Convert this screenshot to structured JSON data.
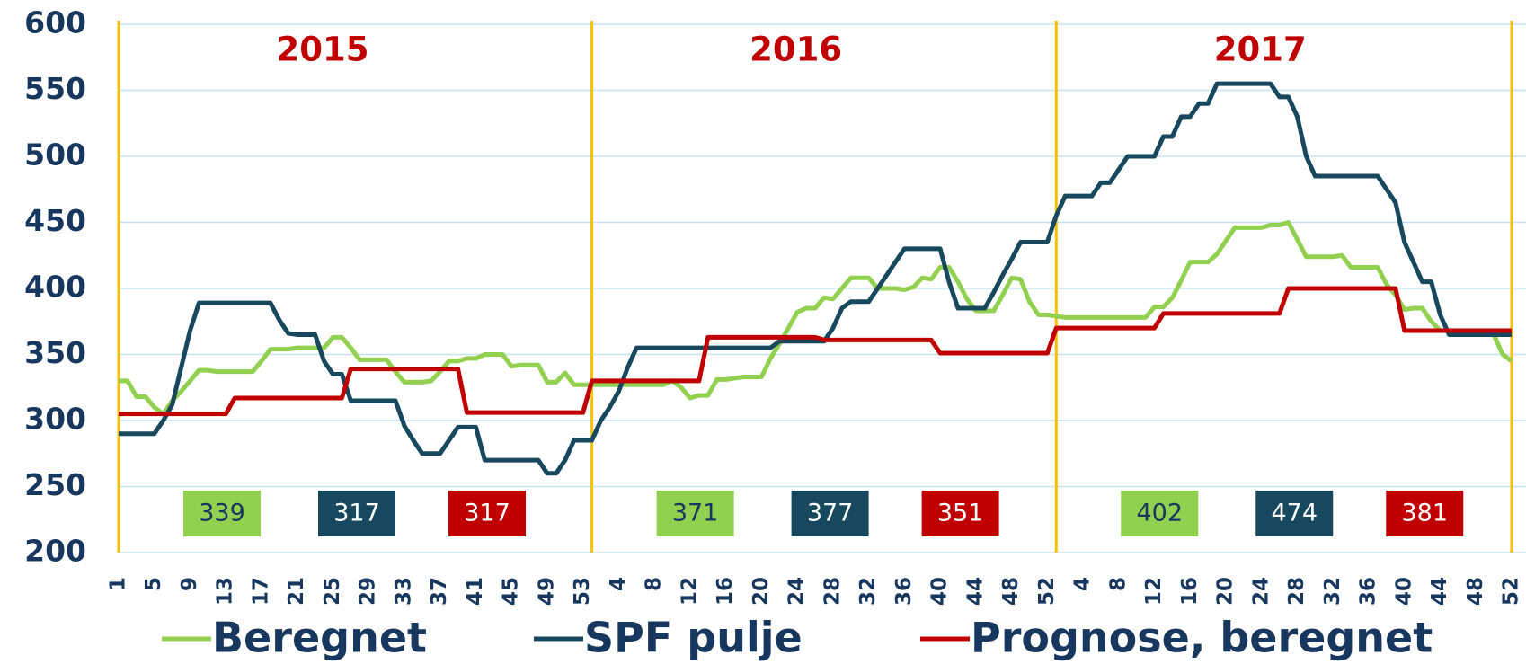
{
  "chart_data": {
    "type": "line",
    "years": [
      "2015",
      "2016",
      "2017"
    ],
    "categories": [
      1,
      null,
      null,
      null,
      5,
      null,
      null,
      null,
      9,
      null,
      null,
      null,
      13,
      null,
      null,
      null,
      17,
      null,
      null,
      null,
      21,
      null,
      null,
      null,
      25,
      null,
      null,
      null,
      29,
      null,
      null,
      null,
      33,
      null,
      null,
      null,
      37,
      null,
      null,
      null,
      41,
      null,
      null,
      null,
      45,
      null,
      null,
      null,
      49,
      null,
      null,
      null,
      53,
      null,
      null,
      null,
      4,
      null,
      null,
      null,
      8,
      null,
      null,
      null,
      12,
      null,
      null,
      null,
      16,
      null,
      null,
      null,
      20,
      null,
      null,
      null,
      24,
      null,
      null,
      null,
      28,
      null,
      null,
      null,
      32,
      null,
      null,
      null,
      36,
      null,
      null,
      null,
      40,
      null,
      null,
      null,
      44,
      null,
      null,
      null,
      48,
      null,
      null,
      null,
      52,
      null,
      null,
      null,
      4,
      null,
      null,
      null,
      8,
      null,
      null,
      null,
      12,
      null,
      null,
      null,
      16,
      null,
      null,
      null,
      20,
      null,
      null,
      null,
      24,
      null,
      null,
      null,
      28,
      null,
      null,
      null,
      32,
      null,
      null,
      null,
      36,
      null,
      null,
      null,
      40,
      null,
      null,
      null,
      44,
      null,
      null,
      null,
      48,
      null,
      null,
      null,
      52
    ],
    "ylim": [
      200,
      600
    ],
    "yticks": [
      200,
      250,
      300,
      350,
      400,
      450,
      500,
      550,
      600
    ],
    "grid": true,
    "series": [
      {
        "name": "Beregnet",
        "color": "#92d050",
        "averages": [
          339,
          371,
          402
        ],
        "values": [
          330,
          330,
          318,
          318,
          310,
          305,
          315,
          322,
          330,
          338,
          338,
          337,
          337,
          337,
          337,
          337,
          345,
          354,
          354,
          354,
          355,
          355,
          355,
          355,
          363,
          363,
          355,
          346,
          346,
          346,
          346,
          337,
          329,
          329,
          329,
          330,
          337,
          345,
          345,
          347,
          347,
          350,
          350,
          350,
          341,
          342,
          342,
          342,
          329,
          329,
          336,
          327,
          327,
          327,
          327,
          327,
          327,
          327,
          327,
          327,
          327,
          327,
          330,
          325,
          317,
          319,
          319,
          331,
          331,
          332,
          333,
          333,
          333,
          347,
          358,
          370,
          382,
          385,
          385,
          393,
          392,
          400,
          408,
          408,
          408,
          400,
          400,
          400,
          399,
          401,
          408,
          407,
          416,
          416,
          405,
          392,
          383,
          383,
          383,
          395,
          408,
          407,
          390,
          380,
          380,
          379,
          378,
          378,
          378,
          378,
          378,
          378,
          378,
          378,
          378,
          378,
          386,
          386,
          393,
          406,
          420,
          420,
          420,
          426,
          436,
          446,
          446,
          446,
          446,
          448,
          448,
          450,
          437,
          424,
          424,
          424,
          424,
          425,
          416,
          416,
          416,
          416,
          403,
          395,
          384,
          385,
          385,
          375,
          368,
          368,
          367,
          367,
          366,
          365,
          365,
          350,
          345
        ]
      },
      {
        "name": "SPF pulje",
        "color": "#17485e",
        "averages": [
          317,
          377,
          474
        ],
        "values": [
          290,
          290,
          290,
          290,
          290,
          300,
          312,
          340,
          368,
          389,
          389,
          389,
          389,
          389,
          389,
          389,
          389,
          389,
          376,
          366,
          365,
          365,
          365,
          345,
          335,
          335,
          315,
          315,
          315,
          315,
          315,
          315,
          296,
          285,
          275,
          275,
          275,
          285,
          295,
          295,
          295,
          270,
          270,
          270,
          270,
          270,
          270,
          270,
          260,
          260,
          270,
          285,
          285,
          285,
          300,
          310,
          322,
          340,
          355,
          355,
          355,
          355,
          355,
          355,
          355,
          355,
          355,
          355,
          355,
          355,
          355,
          355,
          355,
          355,
          360,
          360,
          360,
          360,
          360,
          360,
          370,
          385,
          390,
          390,
          390,
          400,
          410,
          420,
          430,
          430,
          430,
          430,
          430,
          405,
          385,
          385,
          385,
          385,
          397,
          410,
          422,
          435,
          435,
          435,
          435,
          455,
          470,
          470,
          470,
          470,
          480,
          480,
          490,
          500,
          500,
          500,
          500,
          515,
          515,
          530,
          530,
          540,
          540,
          555,
          555,
          555,
          555,
          555,
          555,
          555,
          545,
          545,
          530,
          500,
          485,
          485,
          485,
          485,
          485,
          485,
          485,
          485,
          475,
          465,
          435,
          420,
          405,
          405,
          380,
          365,
          365,
          365,
          365,
          365,
          365,
          365,
          365
        ]
      },
      {
        "name": "Prognose, beregnet",
        "color": "#c00000",
        "averages": [
          317,
          351,
          381
        ],
        "values": [
          305,
          305,
          305,
          305,
          305,
          305,
          305,
          305,
          305,
          305,
          305,
          305,
          305,
          317,
          317,
          317,
          317,
          317,
          317,
          317,
          317,
          317,
          317,
          317,
          317,
          317,
          339,
          339,
          339,
          339,
          339,
          339,
          339,
          339,
          339,
          339,
          339,
          339,
          339,
          306,
          306,
          306,
          306,
          306,
          306,
          306,
          306,
          306,
          306,
          306,
          306,
          306,
          306,
          330,
          330,
          330,
          330,
          330,
          330,
          330,
          330,
          330,
          330,
          330,
          330,
          330,
          363,
          363,
          363,
          363,
          363,
          363,
          363,
          363,
          363,
          363,
          363,
          363,
          363,
          361,
          361,
          361,
          361,
          361,
          361,
          361,
          361,
          361,
          361,
          361,
          361,
          361,
          351,
          351,
          351,
          351,
          351,
          351,
          351,
          351,
          351,
          351,
          351,
          351,
          351,
          370,
          370,
          370,
          370,
          370,
          370,
          370,
          370,
          370,
          370,
          370,
          370,
          381,
          381,
          381,
          381,
          381,
          381,
          381,
          381,
          381,
          381,
          381,
          381,
          381,
          381,
          400,
          400,
          400,
          400,
          400,
          400,
          400,
          400,
          400,
          400,
          400,
          400,
          400,
          368,
          368,
          368,
          368,
          368,
          368,
          368,
          368,
          368,
          368,
          368,
          368,
          368
        ]
      }
    ]
  }
}
